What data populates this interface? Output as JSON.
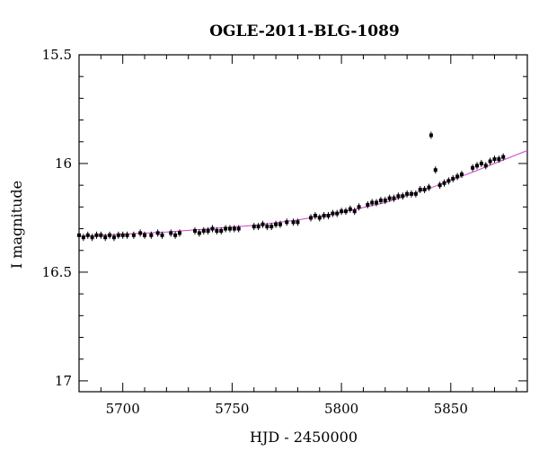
{
  "chart_data": {
    "type": "scatter",
    "title": "OGLE-2011-BLG-1089",
    "xlabel": "HJD - 2450000",
    "ylabel": "I magnitude",
    "xlim": [
      5680,
      5885
    ],
    "ylim": [
      15.5,
      17.05
    ],
    "y_inverted": true,
    "grid": false,
    "x_ticks": [
      5700,
      5750,
      5800,
      5850
    ],
    "y_ticks": [
      15.5,
      16,
      16.5,
      17
    ],
    "x_tick_labels": [
      "5700",
      "5750",
      "5800",
      "5850"
    ],
    "y_tick_labels": [
      "15.5",
      "16",
      "16.5",
      "17"
    ],
    "colors": {
      "points": "#000000",
      "model": "#cc44cc"
    },
    "series": [
      {
        "type": "scatter",
        "x": [
          5680,
          5682,
          5684,
          5686,
          5688,
          5690,
          5692,
          5694,
          5696,
          5698,
          5700,
          5702,
          5705,
          5708,
          5710,
          5713,
          5716,
          5718,
          5722,
          5724,
          5726,
          5733,
          5735,
          5737,
          5739,
          5741,
          5743,
          5745,
          5747,
          5749,
          5751,
          5753,
          5760,
          5762,
          5764,
          5766,
          5768,
          5770,
          5772,
          5775,
          5778,
          5780,
          5786,
          5788,
          5790,
          5792,
          5794,
          5796,
          5798,
          5800,
          5802,
          5804,
          5806,
          5808,
          5812,
          5814,
          5816,
          5818,
          5820,
          5822,
          5824,
          5826,
          5828,
          5830,
          5832,
          5834,
          5836,
          5838,
          5840,
          5841,
          5843,
          5845,
          5847,
          5849,
          5851,
          5853,
          5855,
          5860,
          5862,
          5864,
          5866,
          5868,
          5870,
          5872,
          5874
        ],
        "y": [
          16.33,
          16.34,
          16.33,
          16.34,
          16.33,
          16.33,
          16.34,
          16.33,
          16.34,
          16.33,
          16.33,
          16.33,
          16.33,
          16.32,
          16.33,
          16.33,
          16.32,
          16.33,
          16.32,
          16.33,
          16.32,
          16.31,
          16.32,
          16.31,
          16.31,
          16.3,
          16.31,
          16.31,
          16.3,
          16.3,
          16.3,
          16.3,
          16.29,
          16.29,
          16.28,
          16.29,
          16.29,
          16.28,
          16.28,
          16.27,
          16.27,
          16.27,
          16.25,
          16.24,
          16.25,
          16.24,
          16.24,
          16.23,
          16.23,
          16.22,
          16.22,
          16.21,
          16.22,
          16.2,
          16.19,
          16.18,
          16.18,
          16.17,
          16.17,
          16.16,
          16.16,
          16.15,
          16.15,
          16.14,
          16.14,
          16.14,
          16.12,
          16.12,
          16.11,
          15.87,
          16.03,
          16.1,
          16.09,
          16.08,
          16.07,
          16.06,
          16.05,
          16.02,
          16.01,
          16.0,
          16.01,
          15.99,
          15.98,
          15.98,
          15.97
        ]
      },
      {
        "type": "line",
        "x": [
          5680,
          5700,
          5720,
          5740,
          5760,
          5780,
          5800,
          5820,
          5840,
          5860,
          5885
        ],
        "y": [
          16.335,
          16.325,
          16.315,
          16.3,
          16.285,
          16.26,
          16.225,
          16.18,
          16.115,
          16.04,
          15.94
        ]
      }
    ]
  }
}
